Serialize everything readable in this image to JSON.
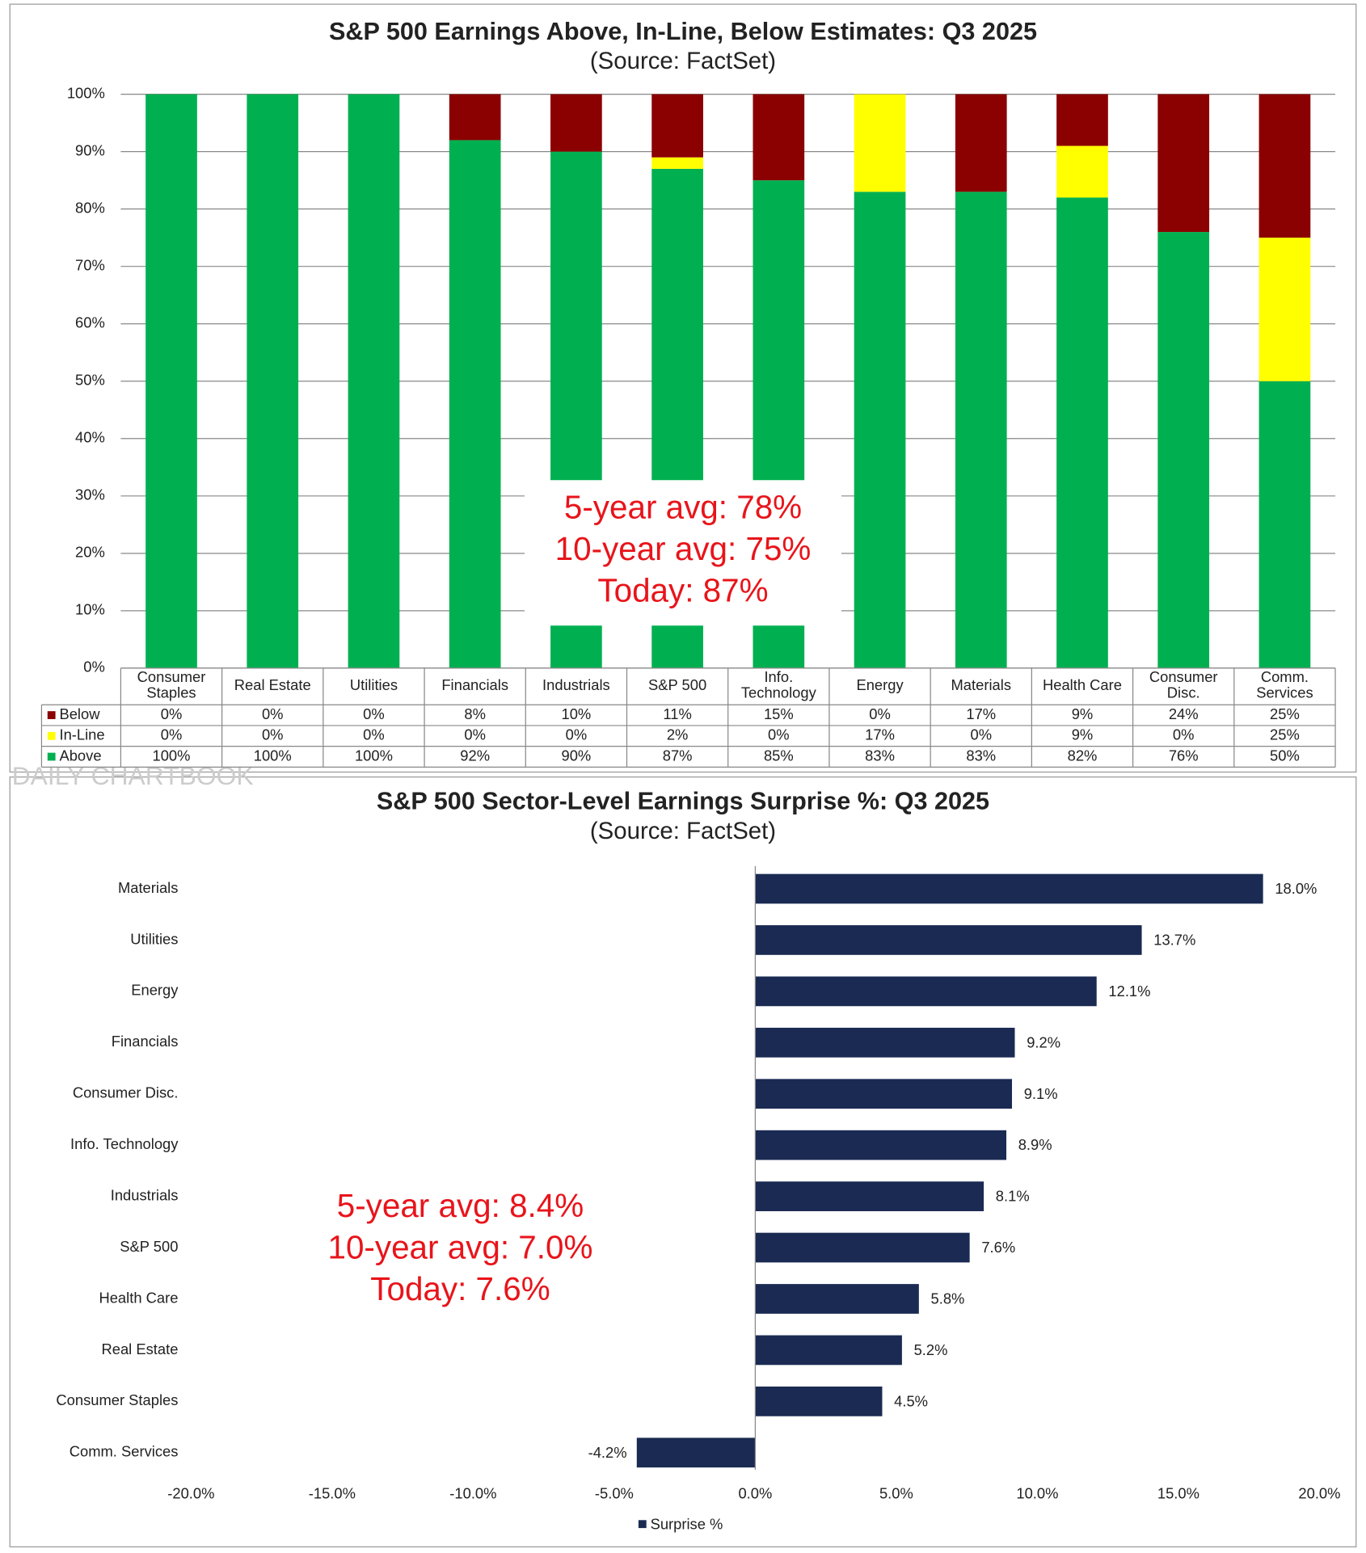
{
  "watermark": "DAILY CHARTBOOK",
  "chart_data": [
    {
      "type": "stacked-bar",
      "title": "S&P 500 Earnings Above, In-Line, Below Estimates: Q3 2025",
      "subtitle": "(Source: FactSet)",
      "categories": [
        "Consumer Staples",
        "Real Estate",
        "Utilities",
        "Financials",
        "Industrials",
        "S&P 500",
        "Info. Technology",
        "Energy",
        "Materials",
        "Health Care",
        "Consumer Disc.",
        "Comm. Services"
      ],
      "series": [
        {
          "name": "Below",
          "color": "#8b0000",
          "values": [
            0,
            0,
            0,
            8,
            10,
            11,
            15,
            0,
            17,
            9,
            24,
            25
          ],
          "value_labels": [
            "0%",
            "0%",
            "0%",
            "8%",
            "10%",
            "11%",
            "15%",
            "0%",
            "17%",
            "9%",
            "24%",
            "25%"
          ]
        },
        {
          "name": "In-Line",
          "color": "#ffff00",
          "values": [
            0,
            0,
            0,
            0,
            0,
            2,
            0,
            17,
            0,
            9,
            0,
            25
          ],
          "value_labels": [
            "0%",
            "0%",
            "0%",
            "0%",
            "0%",
            "2%",
            "0%",
            "17%",
            "0%",
            "9%",
            "0%",
            "25%"
          ]
        },
        {
          "name": "Above",
          "color": "#00b050",
          "values": [
            100,
            100,
            100,
            92,
            90,
            87,
            85,
            83,
            83,
            82,
            76,
            50
          ],
          "value_labels": [
            "100%",
            "100%",
            "100%",
            "92%",
            "90%",
            "87%",
            "85%",
            "83%",
            "83%",
            "82%",
            "76%",
            "50%"
          ]
        }
      ],
      "ylim": [
        0,
        100
      ],
      "yticks": [
        {
          "value": 0,
          "label": "0%"
        },
        {
          "value": 10,
          "label": "10%"
        },
        {
          "value": 20,
          "label": "20%"
        },
        {
          "value": 30,
          "label": "30%"
        },
        {
          "value": 40,
          "label": "40%"
        },
        {
          "value": 50,
          "label": "50%"
        },
        {
          "value": 60,
          "label": "60%"
        },
        {
          "value": 70,
          "label": "70%"
        },
        {
          "value": 80,
          "label": "80%"
        },
        {
          "value": 90,
          "label": "90%"
        },
        {
          "value": 100,
          "label": "100%"
        }
      ],
      "grid": true,
      "annotations": [
        "5-year avg: 78%",
        "10-year avg: 75%",
        "Today: 87%"
      ],
      "annotation_color": "#e8141a"
    },
    {
      "type": "hbar",
      "title": "S&P 500 Sector-Level Earnings Surprise %: Q3 2025",
      "subtitle": "(Source: FactSet)",
      "categories": [
        "Materials",
        "Utilities",
        "Energy",
        "Financials",
        "Consumer Disc.",
        "Info. Technology",
        "Industrials",
        "S&P 500",
        "Health Care",
        "Real Estate",
        "Consumer Staples",
        "Comm. Services"
      ],
      "series": [
        {
          "name": "Surprise %",
          "color": "#1a2a52",
          "values": [
            18.0,
            13.7,
            12.1,
            9.2,
            9.1,
            8.9,
            8.1,
            7.6,
            5.8,
            5.2,
            4.5,
            -4.2
          ],
          "value_labels": [
            "18.0%",
            "13.7%",
            "12.1%",
            "9.2%",
            "9.1%",
            "8.9%",
            "8.1%",
            "7.6%",
            "5.8%",
            "5.2%",
            "4.5%",
            "-4.2%"
          ]
        }
      ],
      "xlim": [
        -20,
        20
      ],
      "xticks": [
        {
          "value": -20,
          "label": "-20.0%"
        },
        {
          "value": -15,
          "label": "-15.0%"
        },
        {
          "value": -10,
          "label": "-10.0%"
        },
        {
          "value": -5,
          "label": "-5.0%"
        },
        {
          "value": 0,
          "label": "0.0%"
        },
        {
          "value": 5,
          "label": "5.0%"
        },
        {
          "value": 10,
          "label": "10.0%"
        },
        {
          "value": 15,
          "label": "15.0%"
        },
        {
          "value": 20,
          "label": "20.0%"
        }
      ],
      "annotations": [
        "5-year avg: 8.4%",
        "10-year avg: 7.0%",
        "Today: 7.6%"
      ],
      "annotation_color": "#e8141a"
    }
  ]
}
